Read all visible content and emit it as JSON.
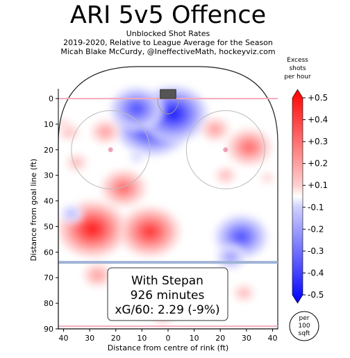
{
  "chart_data": {
    "type": "heatmap",
    "title": "ARI 5v5 Offence",
    "subtitle_lines": [
      "Unblocked Shot Rates",
      "2019-2020, Relative to League Average for the Season",
      "Micah Blake McCurdy, @IneffectiveMath, hockeyviz.com"
    ],
    "xlabel": "Distance from centre of rink (ft)",
    "ylabel": "Distance from goal line (ft)",
    "xlim": [
      42,
      -42
    ],
    "ylim": [
      90,
      -3
    ],
    "x_ticks": [
      40,
      30,
      20,
      10,
      0,
      10,
      20,
      30,
      40
    ],
    "y_ticks": [
      0,
      10,
      20,
      30,
      40,
      50,
      60,
      70,
      80,
      90
    ],
    "colorbar": {
      "label": [
        "Excess",
        "shots",
        "per hour"
      ],
      "ticks": [
        "+0.5",
        "+0.4",
        "+0.3",
        "+0.2",
        "+0.1",
        "-0.1",
        "-0.2",
        "-0.3",
        "-0.4",
        "-0.5"
      ],
      "range": [
        -0.5,
        0.5
      ],
      "pos_color": "#ff0000",
      "neg_color": "#0000ff"
    },
    "annotation": [
      "With Stepan",
      "926 minutes",
      "xG/60: 2.29 (-9%)"
    ],
    "unit_badge": [
      "per",
      "100",
      "sqft"
    ],
    "hotspots": [
      {
        "x": 6,
        "y": 10,
        "value": -0.5
      },
      {
        "x": -2,
        "y": 6,
        "value": -0.45
      },
      {
        "x": 12,
        "y": 4,
        "value": -0.35
      },
      {
        "x": -28,
        "y": 54,
        "value": -0.35
      },
      {
        "x": -24,
        "y": 62,
        "value": -0.2
      },
      {
        "x": 29,
        "y": 51,
        "value": 0.45
      },
      {
        "x": 7,
        "y": 52,
        "value": 0.4
      },
      {
        "x": 17,
        "y": 35,
        "value": 0.3
      },
      {
        "x": -31,
        "y": 19,
        "value": 0.3
      },
      {
        "x": -18,
        "y": 12,
        "value": 0.2
      },
      {
        "x": 24,
        "y": 13,
        "value": 0.2
      },
      {
        "x": 38,
        "y": 13,
        "value": 0.15
      },
      {
        "x": 27,
        "y": 69,
        "value": 0.2
      },
      {
        "x": -8,
        "y": 72,
        "value": 0.15
      },
      {
        "x": 2,
        "y": 85,
        "value": 0.15
      },
      {
        "x": -29,
        "y": 76,
        "value": 0.15
      },
      {
        "x": -22,
        "y": 30,
        "value": 0.15
      },
      {
        "x": -38,
        "y": 31,
        "value": 0.1
      },
      {
        "x": 35,
        "y": 25,
        "value": 0.15
      },
      {
        "x": 12,
        "y": 23,
        "value": -0.1
      },
      {
        "x": 37,
        "y": 45,
        "value": -0.15
      },
      {
        "x": 40,
        "y": 10,
        "value": 0.1
      }
    ]
  }
}
